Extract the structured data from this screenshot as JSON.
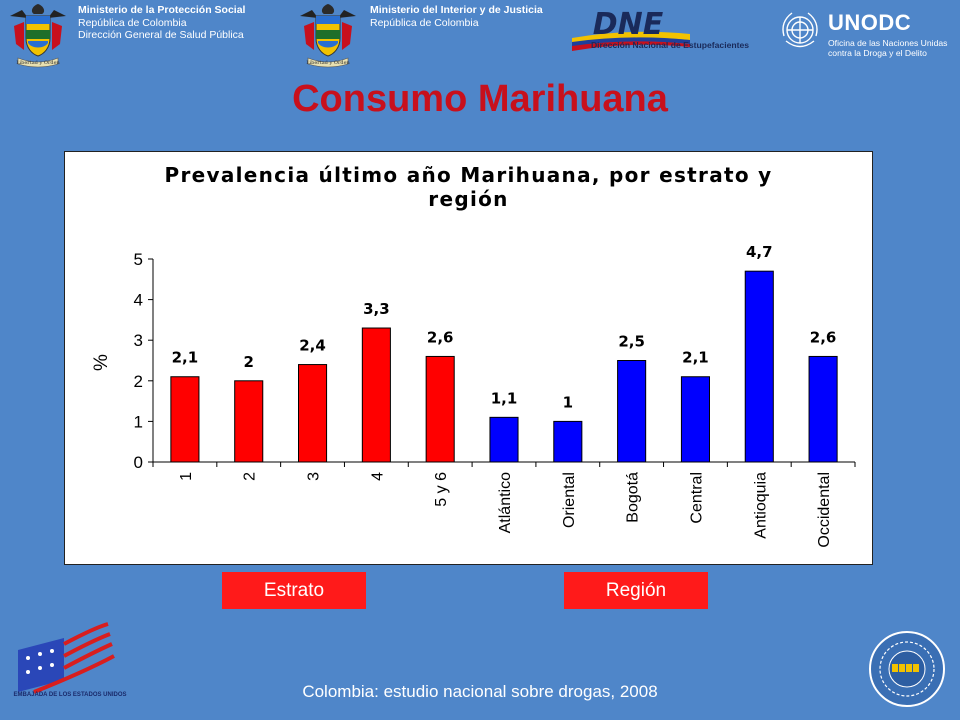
{
  "header": {
    "ministry_left": {
      "title": "Ministerio de la Protección Social",
      "line2": "República de Colombia",
      "line3": "Dirección General de Salud Pública"
    },
    "ministry_right": {
      "title": "Ministerio del Interior y de Justicia",
      "line2": "República de Colombia"
    },
    "crest_motto": "Libertad y Orden",
    "dne": {
      "acronym": "DNE",
      "name": "Dirección Nacional de Estupefacientes"
    },
    "unodc": {
      "acronym": "UNODC",
      "line1": "Oficina de las Naciones Unidas",
      "line2": "contra la Droga y el Delito"
    }
  },
  "slide_title": "Consumo Marihuana",
  "chart_data": {
    "type": "bar",
    "title_line1": "Prevalencia último año Marihuana, por estrato y",
    "title_line2": "región",
    "ylabel": "%",
    "xlabel": "",
    "ylim": [
      0,
      5
    ],
    "yticks": [
      "0",
      "1",
      "2",
      "3",
      "4",
      "5"
    ],
    "grid": false,
    "categories": [
      "1",
      "2",
      "3",
      "4",
      "5 y 6",
      "Atlántico",
      "Oriental",
      "Bogotá",
      "Central",
      "Antioquia",
      "Occidental"
    ],
    "values": [
      2.1,
      2.0,
      2.4,
      3.3,
      2.6,
      1.1,
      1.0,
      2.5,
      2.1,
      4.7,
      2.6
    ],
    "value_labels": [
      "2,1",
      "2",
      "2,4",
      "3,3",
      "2,6",
      "1,1",
      "1",
      "2,5",
      "2,1",
      "4,7",
      "2,6"
    ],
    "bar_colors": [
      "#ff0000",
      "#ff0000",
      "#ff0000",
      "#ff0000",
      "#ff0000",
      "#0000ff",
      "#0000ff",
      "#0000ff",
      "#0000ff",
      "#0000ff",
      "#0000ff"
    ]
  },
  "group_labels": {
    "estrato": "Estrato",
    "region": "Región"
  },
  "footer": {
    "source": "Colombia: estudio nacional sobre drogas, 2008",
    "embassy": "EMBAJADA DE LOS ESTADOS UNIDOS"
  },
  "colors": {
    "background": "#4f86c9",
    "title": "#c8101c",
    "estrato_bar": "#ff0000",
    "region_bar": "#0000ff",
    "label_box": "#ff1a1a"
  },
  "icons": [
    "colombia-crest-icon",
    "dne-logo-icon",
    "un-emblem-icon",
    "us-flag-icon",
    "oas-seal-icon"
  ]
}
